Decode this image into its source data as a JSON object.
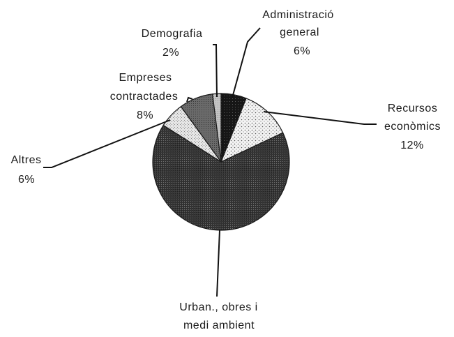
{
  "chart_data": {
    "type": "pie",
    "slices": [
      {
        "key": "admin",
        "lines": [
          "Administració",
          "general"
        ],
        "pct_label": "6%",
        "value": 6,
        "fill": "pat-admin"
      },
      {
        "key": "recursos",
        "lines": [
          "Recursos",
          "econòmics"
        ],
        "pct_label": "12%",
        "value": 12,
        "fill": "pat-recursos"
      },
      {
        "key": "urban",
        "lines": [
          "Urban., obres i",
          "medi ambient"
        ],
        "pct_label": "",
        "value": 66,
        "fill": "pat-urban"
      },
      {
        "key": "altres",
        "lines": [
          "Altres"
        ],
        "pct_label": "6%",
        "value": 6,
        "fill": "pat-altres"
      },
      {
        "key": "empreses",
        "lines": [
          "Empreses",
          "contractades"
        ],
        "pct_label": "8%",
        "value": 8,
        "fill": "pat-empreses"
      },
      {
        "key": "demografia",
        "lines": [
          "Demografia"
        ],
        "pct_label": "2%",
        "value": 2,
        "fill": "pat-demografia"
      }
    ],
    "colors": {
      "admin": "#1c1c1c",
      "recursos": "#f2f2f2",
      "urban": "#3a3a3a",
      "altres": "#dcdcdc",
      "empreses": "#6a6a6a",
      "demografia": "#bdbdbd"
    }
  }
}
